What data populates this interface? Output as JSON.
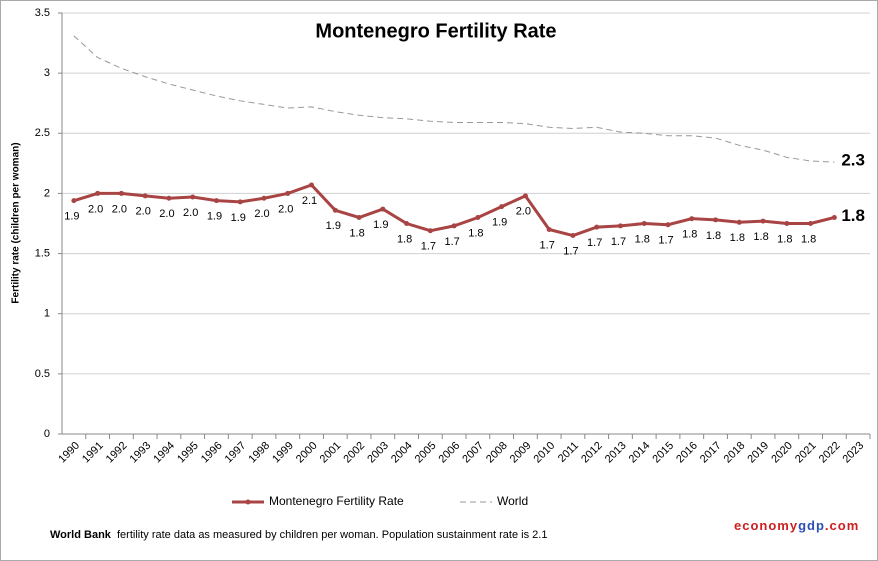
{
  "chart_data": {
    "type": "line",
    "title": "Montenegro Fertility Rate",
    "y_label": "Fertility rate (children per woman)",
    "categories": [
      "1990",
      "1991",
      "1992",
      "1993",
      "1994",
      "1995",
      "1996",
      "1997",
      "1998",
      "1999",
      "2000",
      "2001",
      "2002",
      "2003",
      "2004",
      "2005",
      "2006",
      "2007",
      "2008",
      "2009",
      "2010",
      "2011",
      "2012",
      "2013",
      "2014",
      "2015",
      "2016",
      "2017",
      "2018",
      "2019",
      "2020",
      "2021",
      "2022",
      "2023"
    ],
    "series": [
      {
        "name": "Montenegro Fertility Rate",
        "color": "#a94444",
        "style": "solid",
        "markers": true,
        "values": [
          1.94,
          2.0,
          2.0,
          1.98,
          1.96,
          1.97,
          1.94,
          1.93,
          1.96,
          2.0,
          2.07,
          1.86,
          1.8,
          1.87,
          1.75,
          1.69,
          1.73,
          1.8,
          1.89,
          1.98,
          1.7,
          1.65,
          1.72,
          1.73,
          1.75,
          1.74,
          1.79,
          1.78,
          1.76,
          1.77,
          1.75,
          1.75,
          1.8,
          null
        ],
        "value_labels": [
          "1.9",
          "2.0",
          "2.0",
          "2.0",
          "2.0",
          "2.0",
          "1.9",
          "1.9",
          "2.0",
          "2.0",
          "2.1",
          "1.9",
          "1.8",
          "1.9",
          "1.8",
          "1.7",
          "1.7",
          "1.8",
          "1.9",
          "2.0",
          "1.7",
          "1.7",
          "1.7",
          "1.7",
          "1.8",
          "1.7",
          "1.8",
          "1.8",
          "1.8",
          "1.8",
          "1.8",
          "1.8",
          "1.8",
          null
        ]
      },
      {
        "name": "World",
        "color": "#999999",
        "style": "dashed",
        "markers": false,
        "values": [
          3.31,
          3.13,
          3.04,
          2.97,
          2.91,
          2.86,
          2.81,
          2.77,
          2.74,
          2.71,
          2.72,
          2.68,
          2.65,
          2.63,
          2.62,
          2.6,
          2.59,
          2.59,
          2.59,
          2.58,
          2.55,
          2.54,
          2.55,
          2.51,
          2.5,
          2.48,
          2.48,
          2.46,
          2.4,
          2.36,
          2.3,
          2.27,
          2.26,
          null
        ],
        "value_labels": [
          null,
          null,
          null,
          null,
          null,
          null,
          null,
          null,
          null,
          null,
          null,
          null,
          null,
          null,
          null,
          null,
          null,
          null,
          null,
          null,
          null,
          null,
          null,
          null,
          null,
          null,
          null,
          null,
          null,
          null,
          null,
          null,
          "2.3",
          null
        ]
      }
    ],
    "ylim": [
      0,
      3.5
    ],
    "yticks": [
      0,
      0.5,
      1,
      1.5,
      2,
      2.5,
      3,
      3.5
    ],
    "grid": true,
    "legend": "bottom"
  },
  "footer": {
    "source": "World Bank",
    "note": "fertility rate data as measured by children per woman.  Population sustainment rate is 2.1",
    "brand": [
      "economy",
      "gdp",
      ".com"
    ]
  }
}
